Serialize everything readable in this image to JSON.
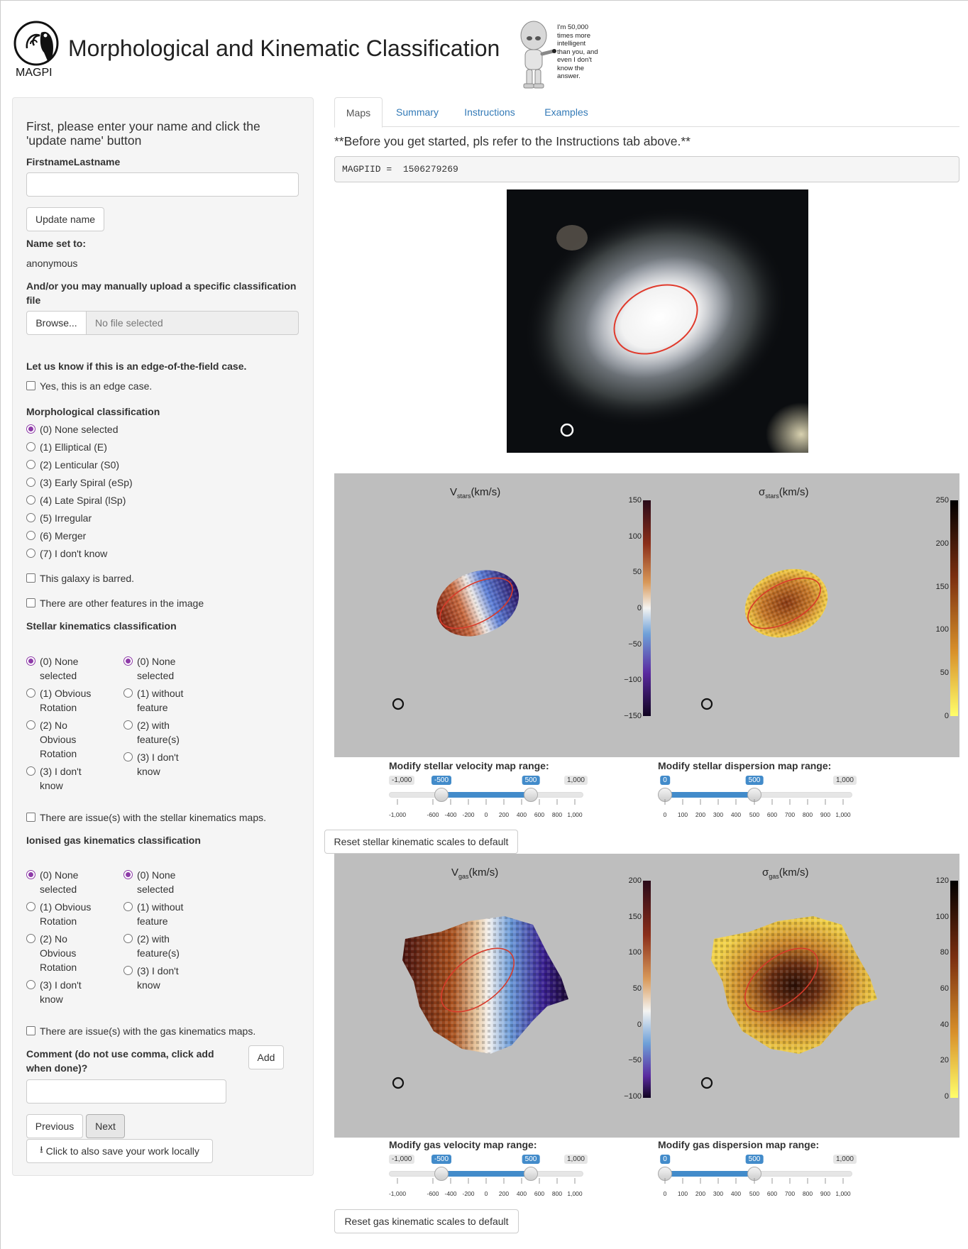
{
  "header": {
    "title": "Morphological and Kinematic Classification",
    "logo_text": "MAGPI",
    "robot_quote": "I'm 50,000 times more intelligent than you, and even I don't know the answer."
  },
  "sidebar": {
    "name_prompt": "First, please enter your name and click the 'update name' button",
    "name_label": "FirstnameLastname",
    "name_value": "",
    "update_button": "Update name",
    "name_set_label": "Name set to:",
    "name_set_value": "anonymous",
    "upload_label": "And/or you may manually upload a specific classification file",
    "browse_button": "Browse...",
    "file_placeholder": "No file selected",
    "edge_label": "Let us know if this is an edge-of-the-field case.",
    "edge_option": "Yes, this is an edge case.",
    "morph_label": "Morphological classification",
    "morph_options": [
      "(0) None selected",
      "(1) Elliptical (E)",
      "(2) Lenticular (S0)",
      "(3) Early Spiral (eSp)",
      "(4) Late Spiral (lSp)",
      "(5) Irregular",
      "(6) Merger",
      "(7) I don't know"
    ],
    "barred_label": "This galaxy is barred.",
    "features_label": "There are other features in the image",
    "stellar_label": "Stellar kinematics classification",
    "kin_options_a": [
      [
        "(0) None",
        "selected"
      ],
      [
        "(1) Obvious",
        "Rotation"
      ],
      [
        "(2) No",
        "Obvious",
        "Rotation"
      ],
      [
        "(3) I don't",
        "know"
      ]
    ],
    "kin_options_b": [
      [
        "(0) None",
        "selected"
      ],
      [
        "(1) without",
        "feature"
      ],
      [
        "(2) with",
        "feature(s)"
      ],
      [
        "(3) I don't",
        "know"
      ]
    ],
    "stellar_issue": "There are issue(s) with the stellar kinematics maps.",
    "gas_label": "Ionised gas kinematics classification",
    "gas_issue": "There are issue(s) with the gas kinematics maps.",
    "comment_label": "Comment (do not use comma, click add when done)?",
    "add_button": "Add",
    "comment_value": "",
    "previous_button": "Previous",
    "next_button": "Next",
    "save_button": "Click to also save your work locally"
  },
  "main": {
    "tabs": [
      "Maps",
      "Summary",
      "Instructions",
      "Examples"
    ],
    "notice": "**Before you get started, pls refer to the Instructions tab above.**",
    "magpiid_text": "MAGPIID =  1506279269",
    "stellar_panel": {
      "left_title": "V",
      "left_sub": "stars",
      "left_unit": "(km/s)",
      "right_title": "σ",
      "right_sub": "stars",
      "right_unit": "(km/s)",
      "vel_ticks": [
        "150",
        "100",
        "50",
        "0",
        "−50",
        "−100",
        "−150"
      ],
      "disp_ticks": [
        "250",
        "200",
        "150",
        "100",
        "50",
        "0"
      ]
    },
    "gas_panel": {
      "left_title": "V",
      "left_sub": "gas",
      "left_unit": "(km/s)",
      "right_title": "σ",
      "right_sub": "gas",
      "right_unit": "(km/s)",
      "vel_ticks": [
        "200",
        "150",
        "100",
        "50",
        "0",
        "−50",
        "−100"
      ],
      "disp_ticks": [
        "120",
        "100",
        "80",
        "60",
        "40",
        "20",
        "0"
      ]
    },
    "sliders": {
      "stellar_vel": {
        "title": "Modify stellar velocity map range:",
        "min": "-1,000",
        "max": "1,000",
        "from": "-500",
        "to": "500",
        "ticks": [
          "-1,000",
          "-600",
          "-400",
          "-200",
          "0",
          "200",
          "400",
          "600",
          "800",
          "1,000"
        ]
      },
      "stellar_disp": {
        "title": "Modify stellar dispersion map range:",
        "min": "0",
        "max": "1,000",
        "from": "0",
        "to": "500",
        "ticks": [
          "0",
          "100",
          "200",
          "300",
          "400",
          "500",
          "600",
          "700",
          "800",
          "900",
          "1,000"
        ]
      },
      "gas_vel": {
        "title": "Modify gas velocity map range:",
        "min": "-1,000",
        "max": "1,000",
        "from": "-500",
        "to": "500",
        "ticks": [
          "-1,000",
          "-600",
          "-400",
          "-200",
          "0",
          "200",
          "400",
          "600",
          "800",
          "1,000"
        ]
      },
      "gas_disp": {
        "title": "Modify gas dispersion map range:",
        "min": "0",
        "max": "1,000",
        "from": "0",
        "to": "500",
        "ticks": [
          "0",
          "100",
          "200",
          "300",
          "400",
          "500",
          "600",
          "700",
          "800",
          "900",
          "1,000"
        ]
      }
    },
    "reset_stellar": "Reset stellar kinematic scales to default",
    "reset_gas": "Reset gas kinematic scales to default"
  }
}
